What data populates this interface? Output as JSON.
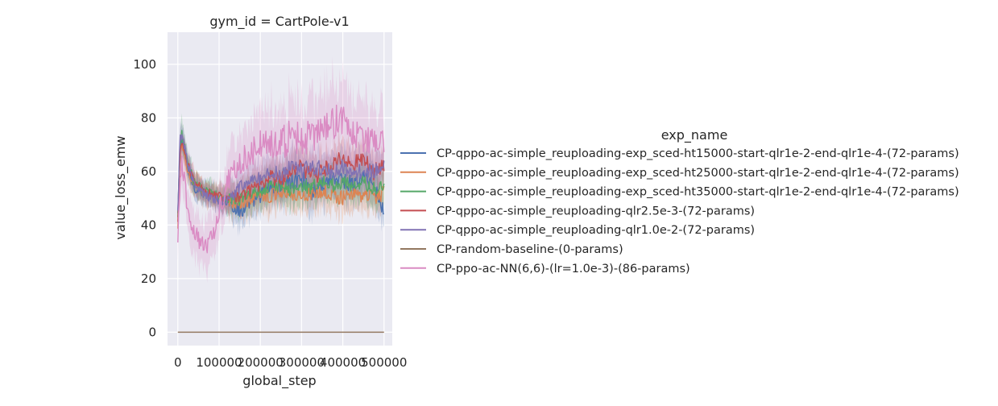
{
  "chart_data": {
    "type": "line",
    "title": "gym_id = CartPole-v1",
    "xlabel": "global_step",
    "ylabel": "value_loss_emw",
    "xlim": [
      -25000,
      520000
    ],
    "ylim": [
      -5,
      112
    ],
    "xticks": [
      0,
      100000,
      200000,
      300000,
      400000,
      500000
    ],
    "xtick_labels": [
      "0",
      "100000",
      "200000",
      "300000",
      "400000",
      "500000"
    ],
    "yticks": [
      0,
      20,
      40,
      60,
      80,
      100
    ],
    "ytick_labels": [
      "0",
      "20",
      "40",
      "60",
      "80",
      "100"
    ],
    "grid": true,
    "background_color": "#eaeaf2",
    "legend": {
      "title": "exp_name",
      "placement": "right"
    },
    "series": [
      {
        "name": "CP-qppo-ac-simple_reuploading-exp_sced-ht15000-start-qlr1e-2-end-qlr1e-4-(72-params)",
        "color": "#4c72b0",
        "x": [
          0,
          5000,
          10000,
          15000,
          25000,
          40000,
          60000,
          80000,
          100000,
          125000,
          150000,
          175000,
          200000,
          225000,
          250000,
          275000,
          300000,
          325000,
          350000,
          375000,
          400000,
          425000,
          450000,
          475000,
          500000
        ],
        "y": [
          44,
          68,
          72,
          68,
          60,
          54,
          52,
          51,
          50,
          48,
          45,
          48,
          51,
          55,
          54,
          56,
          58,
          52,
          55,
          58,
          57,
          55,
          58,
          55,
          45
        ],
        "band": [
          4,
          4,
          4,
          4,
          4,
          4,
          4,
          4,
          4,
          5,
          6,
          6,
          6,
          7,
          7,
          7,
          7,
          7,
          7,
          7,
          7,
          7,
          7,
          7,
          6
        ]
      },
      {
        "name": "CP-qppo-ac-simple_reuploading-exp_sced-ht25000-start-qlr1e-2-end-qlr1e-4-(72-params)",
        "color": "#dd8452",
        "x": [
          0,
          5000,
          10000,
          15000,
          25000,
          40000,
          60000,
          80000,
          100000,
          125000,
          150000,
          175000,
          200000,
          225000,
          250000,
          275000,
          300000,
          325000,
          350000,
          375000,
          400000,
          425000,
          450000,
          475000,
          500000
        ],
        "y": [
          38,
          66,
          70,
          67,
          60,
          55,
          52,
          51,
          50,
          49,
          48,
          50,
          52,
          51,
          53,
          52,
          50,
          52,
          53,
          51,
          50,
          52,
          51,
          50,
          52
        ],
        "band": [
          4,
          4,
          4,
          4,
          4,
          4,
          4,
          4,
          4,
          5,
          6,
          6,
          6,
          6,
          6,
          6,
          6,
          6,
          6,
          6,
          6,
          6,
          6,
          6,
          6
        ]
      },
      {
        "name": "CP-qppo-ac-simple_reuploading-exp_sced-ht35000-start-qlr1e-2-end-qlr1e-4-(72-params)",
        "color": "#55a868",
        "x": [
          0,
          5000,
          10000,
          15000,
          25000,
          40000,
          60000,
          80000,
          100000,
          125000,
          150000,
          175000,
          200000,
          225000,
          250000,
          275000,
          300000,
          325000,
          350000,
          375000,
          400000,
          425000,
          450000,
          475000,
          500000
        ],
        "y": [
          42,
          70,
          75,
          70,
          62,
          56,
          53,
          52,
          51,
          50,
          50,
          52,
          53,
          55,
          54,
          53,
          55,
          54,
          56,
          55,
          56,
          55,
          56,
          54,
          55
        ],
        "band": [
          4,
          5,
          6,
          5,
          4,
          4,
          4,
          4,
          4,
          5,
          6,
          6,
          6,
          6,
          6,
          6,
          6,
          6,
          6,
          6,
          6,
          6,
          6,
          6,
          6
        ]
      },
      {
        "name": "CP-qppo-ac-simple_reuploading-qlr2.5e-3-(72-params)",
        "color": "#c44e52",
        "x": [
          0,
          5000,
          10000,
          15000,
          25000,
          40000,
          60000,
          80000,
          100000,
          125000,
          150000,
          175000,
          200000,
          225000,
          250000,
          275000,
          300000,
          325000,
          350000,
          375000,
          400000,
          425000,
          450000,
          475000,
          500000
        ],
        "y": [
          40,
          67,
          70,
          68,
          62,
          56,
          53,
          52,
          51,
          50,
          51,
          53,
          56,
          58,
          57,
          60,
          62,
          58,
          60,
          63,
          65,
          62,
          66,
          60,
          62
        ],
        "band": [
          4,
          4,
          4,
          4,
          4,
          4,
          4,
          4,
          4,
          5,
          6,
          6,
          7,
          7,
          7,
          7,
          7,
          7,
          7,
          7,
          7,
          7,
          7,
          7,
          7
        ]
      },
      {
        "name": "CP-qppo-ac-simple_reuploading-qlr1.0e-2-(72-params)",
        "color": "#8172b3",
        "x": [
          0,
          5000,
          10000,
          15000,
          25000,
          40000,
          60000,
          80000,
          100000,
          125000,
          150000,
          175000,
          200000,
          225000,
          250000,
          275000,
          300000,
          325000,
          350000,
          375000,
          400000,
          425000,
          450000,
          475000,
          500000
        ],
        "y": [
          44,
          72,
          73,
          70,
          62,
          56,
          52,
          50,
          49,
          50,
          54,
          56,
          58,
          60,
          59,
          62,
          60,
          62,
          61,
          60,
          62,
          58,
          61,
          60,
          62
        ],
        "band": [
          4,
          4,
          4,
          4,
          4,
          4,
          4,
          4,
          4,
          5,
          6,
          6,
          7,
          7,
          7,
          7,
          7,
          7,
          7,
          7,
          7,
          7,
          7,
          7,
          7
        ]
      },
      {
        "name": "CP-random-baseline-(0-params)",
        "color": "#937860",
        "x": [
          0,
          500000
        ],
        "y": [
          0,
          0
        ],
        "band": [
          0,
          0
        ]
      },
      {
        "name": "CP-ppo-ac-NN(6,6)-(lr=1.0e-3)-(86-params)",
        "color": "#da8bc3",
        "x": [
          0,
          5000,
          10000,
          15000,
          25000,
          40000,
          55000,
          70000,
          85000,
          100000,
          125000,
          150000,
          175000,
          200000,
          225000,
          250000,
          275000,
          300000,
          325000,
          350000,
          375000,
          400000,
          425000,
          450000,
          475000,
          500000
        ],
        "y": [
          36,
          55,
          64,
          58,
          44,
          37,
          33,
          32,
          36,
          46,
          58,
          64,
          66,
          70,
          72,
          70,
          74,
          72,
          73,
          74,
          78,
          80,
          74,
          72,
          70,
          72
        ],
        "band": [
          6,
          8,
          8,
          8,
          8,
          8,
          8,
          8,
          8,
          9,
          10,
          12,
          12,
          14,
          14,
          14,
          14,
          14,
          14,
          14,
          14,
          14,
          14,
          14,
          12,
          12
        ]
      }
    ]
  }
}
